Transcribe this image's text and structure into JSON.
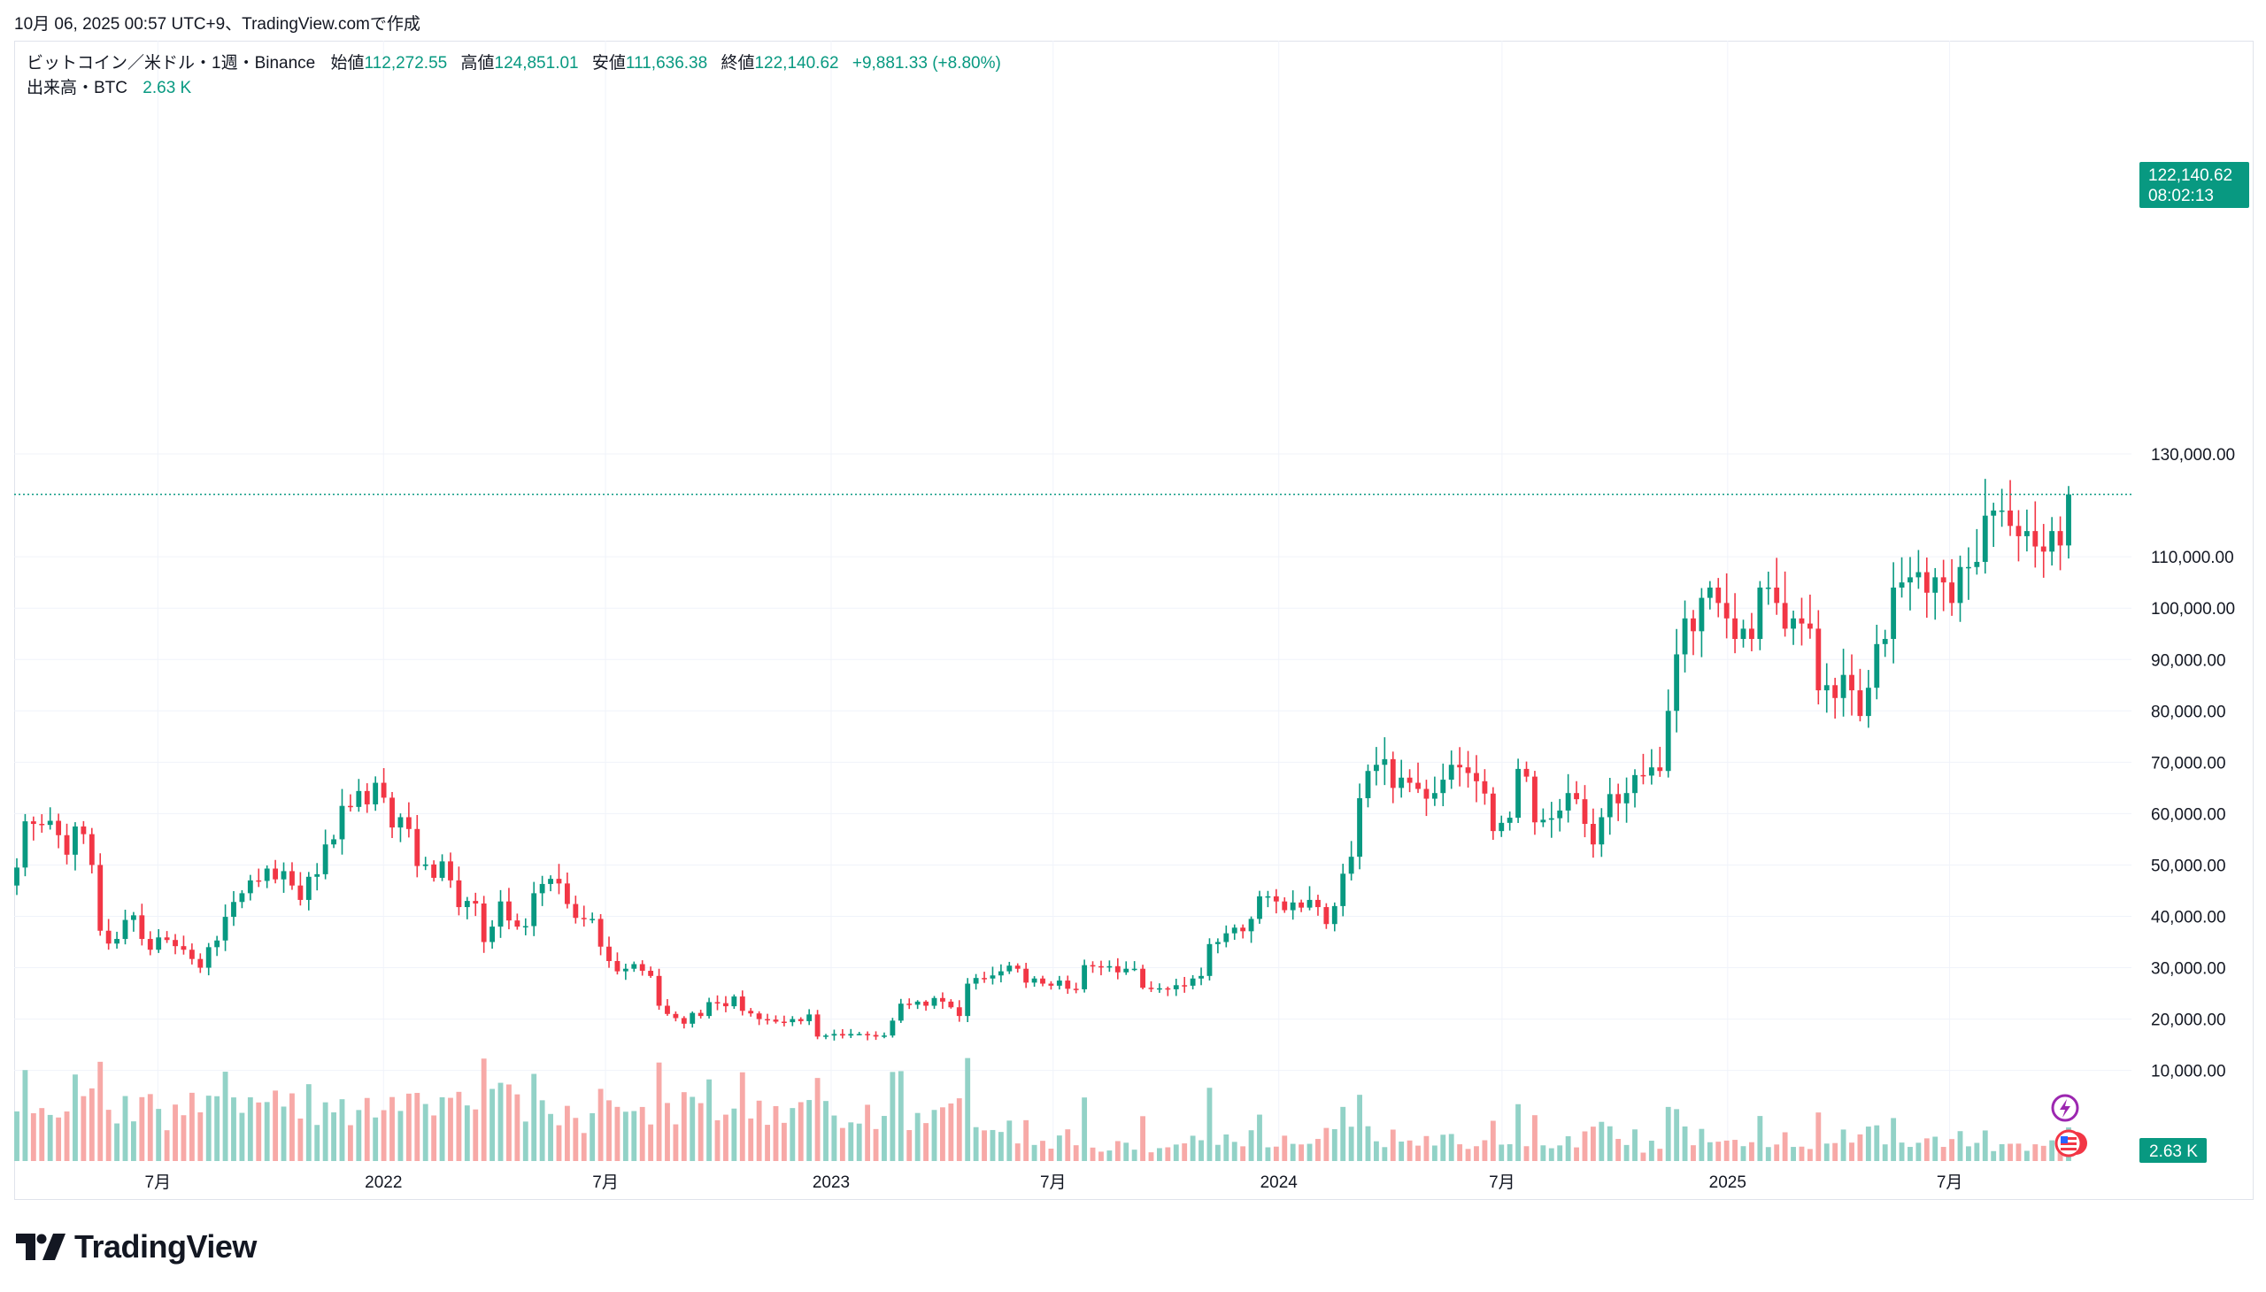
{
  "caption": "10月 06, 2025 00:57 UTC+9、TradingView.comで作成",
  "legend": {
    "symbol": "ビットコイン／米ドル・1週・Binance",
    "open_label": "始値",
    "open": "112,272.55",
    "high_label": "高値",
    "high": "124,851.01",
    "low_label": "安値",
    "low": "111,636.38",
    "close_label": "終値",
    "close": "122,140.62",
    "change": "+9,881.33 (+8.80%)",
    "volume_label": "出来高・BTC",
    "volume": "2.63 K"
  },
  "price_badge": {
    "price": "122,140.62",
    "countdown": "08:02:13"
  },
  "volume_badge": "2.63 K",
  "brand": "TradingView",
  "colors": {
    "up": "#089981",
    "down": "#f23645",
    "up_volume": "#92d2c7",
    "down_volume": "#f7a9a7",
    "grid": "#f0f3fa"
  },
  "chart_data": {
    "type": "candlestick",
    "interval": "1W",
    "x_tick_labels": [
      "7月",
      "2022",
      "7月",
      "2023",
      "7月",
      "2024",
      "7月",
      "2025",
      "7月"
    ],
    "x_tick_dates": [
      "2021-07-01",
      "2022-01-01",
      "2022-07-01",
      "2023-01-01",
      "2023-07-01",
      "2024-01-01",
      "2024-07-01",
      "2025-01-01",
      "2025-07-01"
    ],
    "y_tick_labels": [
      "130,000.00",
      "110,000.00",
      "100,000.00",
      "90,000.00",
      "80,000.00",
      "70,000.00",
      "60,000.00",
      "50,000.00",
      "40,000.00",
      "30,000.00",
      "20,000.00",
      "10,000.00"
    ],
    "y_ticks": [
      130000,
      110000,
      100000,
      90000,
      80000,
      70000,
      60000,
      50000,
      40000,
      30000,
      20000,
      10000
    ],
    "ylim": [
      4400,
      136000
    ],
    "last_price": 122140.62,
    "first_week": "2021-03-08",
    "last_week": "2025-10-06",
    "closes": [
      49500,
      58500,
      58000,
      57800,
      58600,
      55800,
      52000,
      57500,
      56000,
      50000,
      37200,
      34700,
      35600,
      39300,
      40200,
      35600,
      33500,
      35900,
      35400,
      34200,
      33500,
      31700,
      30000,
      34000,
      35300,
      39900,
      42800,
      44500,
      47000,
      46900,
      49300,
      47200,
      48800,
      46000,
      43200,
      47700,
      48200,
      54000,
      55000,
      61500,
      61300,
      64400,
      61800,
      66000,
      63100,
      57300,
      59300,
      57000,
      49800,
      50100,
      47500,
      50700,
      47000,
      41800,
      43000,
      42500,
      35000,
      38000,
      42900,
      39200,
      38000,
      38100,
      44500,
      46300,
      47300,
      46400,
      42400,
      39700,
      39500,
      39500,
      34100,
      31300,
      29300,
      29800,
      30700,
      29400,
      28400,
      22600,
      21000,
      20200,
      19100,
      21200,
      20600,
      23300,
      23100,
      22500,
      24400,
      21600,
      21100,
      20000,
      19900,
      19500,
      19400,
      20000,
      19600,
      20900,
      16600,
      16800,
      17100,
      16800,
      17100,
      17100,
      16900,
      16600,
      16800,
      19700,
      23000,
      22800,
      23400,
      22600,
      24100,
      23400,
      22300,
      20600,
      26900,
      28000,
      27900,
      28500,
      29300,
      30400,
      29800,
      27100,
      27900,
      26900,
      26500,
      27500,
      25900,
      25800,
      30500,
      30300,
      30200,
      30300,
      29100,
      29800,
      29800,
      26100,
      26000,
      26000,
      25800,
      26600,
      26500,
      27900,
      28400,
      34600,
      35000,
      36700,
      37800,
      37100,
      39500,
      43900,
      43900,
      42900,
      41200,
      42700,
      41700,
      43200,
      41800,
      38500,
      42000,
      48300,
      51600,
      63000,
      68300,
      69500,
      70600,
      65000,
      67000,
      66000,
      64800,
      62900,
      64000,
      66600,
      69500,
      69000,
      67900,
      66300,
      63900,
      56600,
      58200,
      59200,
      68700,
      67200,
      58300,
      58800,
      59100,
      60600,
      64000,
      62800,
      58000,
      54000,
      59300,
      63800,
      62000,
      64000,
      67500,
      67400,
      69000,
      68300,
      80000,
      91000,
      98000,
      95500,
      102000,
      104000,
      101000,
      98000,
      94000,
      96000,
      94000,
      104000,
      104000,
      101000,
      96000,
      98000,
      97000,
      96000,
      84000,
      85000,
      82500,
      87000,
      84000,
      79000,
      84500,
      93000,
      94000,
      104000,
      105000,
      106000,
      107000,
      103000,
      106000,
      105000,
      101000,
      108000,
      108000,
      109000,
      118000,
      119000,
      119000,
      116000,
      114000,
      115000,
      112000,
      111000,
      115000,
      112200,
      122140.62
    ]
  }
}
